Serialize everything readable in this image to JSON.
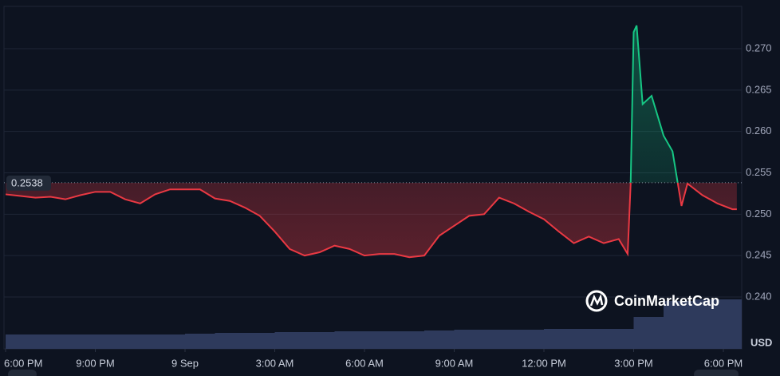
{
  "chart_data": {
    "type": "line",
    "reference": {
      "value": 0.2538,
      "label": "0.2538"
    },
    "series": [
      {
        "up_color": "#16c784",
        "down_color": "#ea3943",
        "x": [
          0,
          0.5,
          1,
          1.5,
          2,
          2.5,
          3,
          3.5,
          4,
          4.5,
          5,
          5.5,
          6,
          6.5,
          7,
          7.5,
          8,
          8.5,
          9,
          9.5,
          10,
          10.5,
          11,
          11.5,
          12,
          12.5,
          13,
          13.5,
          14,
          14.5,
          15,
          15.5,
          16,
          16.5,
          17,
          17.5,
          18,
          18.5,
          19,
          19.5,
          20,
          20.5,
          20.8,
          20.9,
          21,
          21.1,
          21.3,
          21.6,
          22,
          22.3,
          22.6,
          22.8,
          23.3,
          23.8,
          24.3,
          24.45
        ],
        "values": [
          0.2524,
          0.2522,
          0.252,
          0.2521,
          0.2518,
          0.2523,
          0.2527,
          0.2527,
          0.2518,
          0.2513,
          0.2524,
          0.253,
          0.253,
          0.253,
          0.2519,
          0.2516,
          0.2508,
          0.2498,
          0.2479,
          0.2458,
          0.245,
          0.2454,
          0.2462,
          0.2458,
          0.245,
          0.2452,
          0.2452,
          0.2448,
          0.245,
          0.2474,
          0.2486,
          0.2498,
          0.25,
          0.252,
          0.2513,
          0.2503,
          0.2494,
          0.2479,
          0.2465,
          0.2473,
          0.2465,
          0.247,
          0.2452,
          0.2537,
          0.272,
          0.2728,
          0.2633,
          0.2643,
          0.2595,
          0.2576,
          0.251,
          0.2537,
          0.2523,
          0.2513,
          0.2506,
          0.2506
        ]
      }
    ],
    "volume": {
      "color": "#2e3a5c",
      "x": [
        0,
        1,
        2,
        3,
        4,
        5,
        6,
        7,
        8,
        9,
        10,
        11,
        12,
        13,
        14,
        15,
        16,
        17,
        18,
        19,
        20,
        21,
        22,
        23,
        24
      ],
      "values": [
        18,
        18,
        18,
        18,
        18,
        18,
        19,
        20,
        20,
        21,
        21,
        22,
        22,
        22,
        23,
        24,
        24,
        24,
        25,
        25,
        25,
        40,
        60,
        62,
        62
      ]
    },
    "xlim": [
      0,
      24.6
    ],
    "xticks": [
      {
        "value": 0,
        "label": "6:00 PM"
      },
      {
        "value": 3,
        "label": "9:00 PM"
      },
      {
        "value": 6,
        "label": "9 Sep"
      },
      {
        "value": 9,
        "label": "3:00 AM"
      },
      {
        "value": 12,
        "label": "6:00 AM"
      },
      {
        "value": 15,
        "label": "9:00 AM"
      },
      {
        "value": 18,
        "label": "12:00 PM"
      },
      {
        "value": 21,
        "label": "3:00 PM"
      },
      {
        "value": 24,
        "label": "6:00 PM"
      }
    ],
    "ylim": [
      0.23373,
      0.27511
    ],
    "yticks": [
      {
        "value": 0.24,
        "label": "0.240"
      },
      0.245,
      {
        "value": 0.25,
        "label": "0.250"
      },
      0.255,
      {
        "value": 0.26,
        "label": "0.260"
      },
      0.265,
      {
        "value": 0.27,
        "label": "0.270"
      }
    ],
    "y_unit": "USD",
    "watermark": "CoinMarketCap",
    "grid": true
  }
}
